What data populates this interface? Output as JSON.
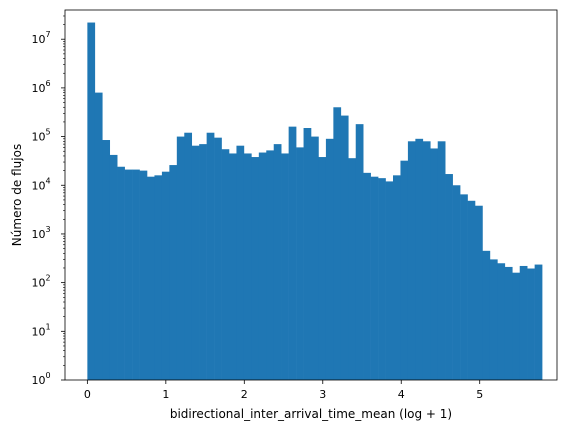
{
  "chart_data": {
    "type": "bar",
    "subtype": "histogram",
    "xlabel": "bidirectional_inter_arrival_time_mean (log + 1)",
    "ylabel": "Número de flujos",
    "xlim": [
      -0.285,
      5.985
    ],
    "ylim_exponent": [
      0,
      7.6
    ],
    "yscale": "log",
    "xticks": [
      {
        "value": 0,
        "label": "0"
      },
      {
        "value": 1,
        "label": "1"
      },
      {
        "value": 2,
        "label": "2"
      },
      {
        "value": 3,
        "label": "3"
      },
      {
        "value": 4,
        "label": "4"
      },
      {
        "value": 5,
        "label": "5"
      }
    ],
    "yticks": [
      {
        "exp": 0,
        "label": "10",
        "sup": "0"
      },
      {
        "exp": 1,
        "label": "10",
        "sup": "1"
      },
      {
        "exp": 2,
        "label": "10",
        "sup": "2"
      },
      {
        "exp": 3,
        "label": "10",
        "sup": "3"
      },
      {
        "exp": 4,
        "label": "10",
        "sup": "4"
      },
      {
        "exp": 5,
        "label": "10",
        "sup": "5"
      },
      {
        "exp": 6,
        "label": "10",
        "sup": "6"
      },
      {
        "exp": 7,
        "label": "10",
        "sup": "7"
      }
    ],
    "bin_start": 0.0,
    "bin_width": 0.095,
    "bar_color": "#1f77b4",
    "grid": false,
    "values": [
      22000000,
      800000,
      85000,
      42000,
      24000,
      21000,
      21000,
      20000,
      15000,
      16000,
      19000,
      26000,
      100000,
      120000,
      65000,
      70000,
      120000,
      95000,
      55000,
      45000,
      65000,
      45000,
      38000,
      47000,
      52000,
      70000,
      45000,
      160000,
      60000,
      150000,
      100000,
      38000,
      90000,
      400000,
      270000,
      36000,
      180000,
      18000,
      15000,
      14000,
      12000,
      16000,
      32000,
      80000,
      90000,
      80000,
      57000,
      80000,
      17000,
      10000,
      6500,
      4800,
      3800,
      450,
      300,
      250,
      210,
      160,
      220,
      195,
      235
    ]
  }
}
